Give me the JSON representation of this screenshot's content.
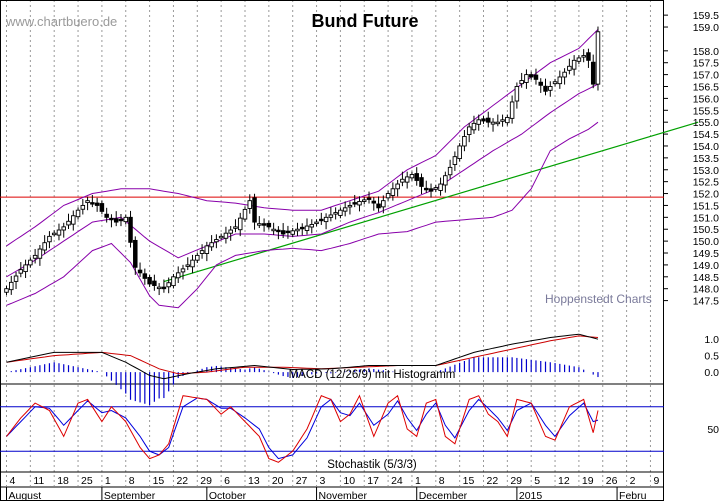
{
  "chart_data": {
    "type": "candlestick",
    "title": "Bund Future",
    "watermark": "www.chartbuero.de",
    "source_note": "Hoppenstedt Charts",
    "colors": {
      "candle": "#000000",
      "bollinger": "#8800aa",
      "support_line": "#00a000",
      "resistance_line": "#dd0000",
      "macd_line": "#000000",
      "macd_signal": "#cc0000",
      "macd_histogram": "#0000cc",
      "stoch_k": "#dd0000",
      "stoch_d": "#0000dd",
      "grid": "#999999"
    },
    "price_axis": {
      "ylim": [
        146.6,
        159.8
      ],
      "ticks": [
        "159.5",
        "159.0",
        "158.0",
        "157.5",
        "157.0",
        "156.5",
        "156.0",
        "155.5",
        "155.0",
        "154.5",
        "154.0",
        "153.5",
        "153.0",
        "152.5",
        "152.0",
        "151.5",
        "151.0",
        "150.5",
        "150.0",
        "149.5",
        "149.0",
        "148.5",
        "148.0",
        "147.5"
      ]
    },
    "resistance_level": 151.85,
    "support_trendline": {
      "from_index": 33,
      "from_value": 148.3,
      "to_index": 145,
      "to_value": 155.0
    },
    "x_axis": {
      "day_ticks": [
        {
          "label": "4",
          "i": 0
        },
        {
          "label": "11",
          "i": 5
        },
        {
          "label": "18",
          "i": 10
        },
        {
          "label": "25",
          "i": 15
        },
        {
          "label": "1",
          "i": 20
        },
        {
          "label": "8",
          "i": 25
        },
        {
          "label": "15",
          "i": 30
        },
        {
          "label": "22",
          "i": 35
        },
        {
          "label": "29",
          "i": 40
        },
        {
          "label": "6",
          "i": 45
        },
        {
          "label": "13",
          "i": 50
        },
        {
          "label": "20",
          "i": 55
        },
        {
          "label": "27",
          "i": 60
        },
        {
          "label": "3",
          "i": 65
        },
        {
          "label": "10",
          "i": 70
        },
        {
          "label": "17",
          "i": 75
        },
        {
          "label": "24",
          "i": 80
        },
        {
          "label": "1",
          "i": 85
        },
        {
          "label": "8",
          "i": 90
        },
        {
          "label": "15",
          "i": 95
        },
        {
          "label": "22",
          "i": 100
        },
        {
          "label": "29",
          "i": 105
        },
        {
          "label": "5",
          "i": 110
        },
        {
          "label": "12",
          "i": 115
        },
        {
          "label": "19",
          "i": 120
        },
        {
          "label": "26",
          "i": 125
        },
        {
          "label": "2",
          "i": 130
        },
        {
          "label": "9",
          "i": 135
        }
      ],
      "month_labels": [
        {
          "label": "August",
          "i": 0
        },
        {
          "label": "September",
          "i": 20
        },
        {
          "label": "October",
          "i": 42
        },
        {
          "label": "November",
          "i": 65
        },
        {
          "label": "December",
          "i": 86
        },
        {
          "label": "2015",
          "i": 107
        },
        {
          "label": "Febru",
          "i": 128
        }
      ]
    },
    "close_anchors": [
      [
        0,
        148.0
      ],
      [
        3,
        148.8
      ],
      [
        6,
        149.4
      ],
      [
        9,
        150.2
      ],
      [
        12,
        150.6
      ],
      [
        15,
        151.3
      ],
      [
        17,
        151.7
      ],
      [
        19,
        151.5
      ],
      [
        21,
        151.0
      ],
      [
        23,
        150.8
      ],
      [
        25,
        151.0
      ],
      [
        27,
        148.9
      ],
      [
        30,
        148.2
      ],
      [
        33,
        148.0
      ],
      [
        35,
        148.5
      ],
      [
        38,
        149.0
      ],
      [
        40,
        149.4
      ],
      [
        42,
        149.8
      ],
      [
        45,
        150.2
      ],
      [
        48,
        150.6
      ],
      [
        51,
        151.7
      ],
      [
        52,
        150.8
      ],
      [
        55,
        150.6
      ],
      [
        58,
        150.3
      ],
      [
        61,
        150.5
      ],
      [
        64,
        150.7
      ],
      [
        67,
        151.0
      ],
      [
        70,
        151.3
      ],
      [
        73,
        151.6
      ],
      [
        76,
        151.8
      ],
      [
        78,
        151.4
      ],
      [
        80,
        152.0
      ],
      [
        83,
        152.6
      ],
      [
        85,
        152.8
      ],
      [
        87,
        152.3
      ],
      [
        89,
        152.1
      ],
      [
        91,
        152.4
      ],
      [
        93,
        153.1
      ],
      [
        95,
        154.0
      ],
      [
        97,
        154.8
      ],
      [
        99,
        155.1
      ],
      [
        101,
        155.0
      ],
      [
        103,
        155.0
      ],
      [
        105,
        155.2
      ],
      [
        107,
        156.5
      ],
      [
        109,
        157.0
      ],
      [
        111,
        156.8
      ],
      [
        113,
        156.3
      ],
      [
        115,
        156.7
      ],
      [
        117,
        157.1
      ],
      [
        119,
        157.6
      ],
      [
        121,
        157.8
      ],
      [
        122,
        157.6
      ],
      [
        123,
        156.6
      ],
      [
        124,
        158.8
      ]
    ],
    "bollinger_upper_anchors": [
      [
        0,
        149.8
      ],
      [
        6,
        150.6
      ],
      [
        12,
        151.5
      ],
      [
        18,
        152.0
      ],
      [
        24,
        152.2
      ],
      [
        30,
        152.2
      ],
      [
        36,
        152.0
      ],
      [
        42,
        151.7
      ],
      [
        48,
        151.6
      ],
      [
        54,
        151.4
      ],
      [
        60,
        151.3
      ],
      [
        66,
        151.3
      ],
      [
        72,
        151.7
      ],
      [
        78,
        152.1
      ],
      [
        84,
        153.0
      ],
      [
        90,
        153.6
      ],
      [
        96,
        154.8
      ],
      [
        102,
        155.7
      ],
      [
        108,
        156.6
      ],
      [
        114,
        157.5
      ],
      [
        120,
        158.1
      ],
      [
        124,
        158.9
      ]
    ],
    "bollinger_middle_anchors": [
      [
        0,
        148.5
      ],
      [
        6,
        149.2
      ],
      [
        12,
        150.0
      ],
      [
        18,
        150.8
      ],
      [
        24,
        151.0
      ],
      [
        30,
        150.0
      ],
      [
        36,
        149.3
      ],
      [
        42,
        149.8
      ],
      [
        48,
        150.3
      ],
      [
        54,
        150.3
      ],
      [
        60,
        150.2
      ],
      [
        66,
        150.3
      ],
      [
        72,
        150.8
      ],
      [
        78,
        151.2
      ],
      [
        84,
        151.7
      ],
      [
        90,
        152.2
      ],
      [
        96,
        153.0
      ],
      [
        102,
        153.8
      ],
      [
        108,
        154.5
      ],
      [
        114,
        155.4
      ],
      [
        120,
        156.2
      ],
      [
        124,
        156.6
      ]
    ],
    "bollinger_lower_anchors": [
      [
        0,
        147.3
      ],
      [
        6,
        147.8
      ],
      [
        12,
        148.5
      ],
      [
        18,
        149.6
      ],
      [
        22,
        149.9
      ],
      [
        26,
        149.1
      ],
      [
        30,
        147.7
      ],
      [
        32,
        147.3
      ],
      [
        36,
        147.2
      ],
      [
        40,
        148.0
      ],
      [
        44,
        149.0
      ],
      [
        48,
        149.4
      ],
      [
        54,
        149.6
      ],
      [
        60,
        149.7
      ],
      [
        66,
        149.6
      ],
      [
        72,
        149.9
      ],
      [
        78,
        150.3
      ],
      [
        84,
        150.4
      ],
      [
        90,
        150.8
      ],
      [
        96,
        150.9
      ],
      [
        102,
        151.0
      ],
      [
        106,
        151.3
      ],
      [
        110,
        152.2
      ],
      [
        114,
        153.8
      ],
      [
        118,
        154.3
      ],
      [
        122,
        154.7
      ],
      [
        124,
        155.0
      ]
    ],
    "macd_panel": {
      "label": "MACD (12/26/9) mit Histogramm",
      "ticks": [
        "1.0",
        "0.5",
        "0.0"
      ],
      "ylim": [
        -0.3,
        1.4
      ],
      "macd_anchors": [
        [
          0,
          0.3
        ],
        [
          10,
          0.6
        ],
        [
          20,
          0.6
        ],
        [
          25,
          0.3
        ],
        [
          30,
          -0.1
        ],
        [
          33,
          -0.2
        ],
        [
          38,
          -0.05
        ],
        [
          44,
          0.1
        ],
        [
          52,
          0.2
        ],
        [
          60,
          0.08
        ],
        [
          68,
          0.1
        ],
        [
          76,
          0.2
        ],
        [
          84,
          0.2
        ],
        [
          90,
          0.2
        ],
        [
          98,
          0.6
        ],
        [
          106,
          0.85
        ],
        [
          114,
          1.05
        ],
        [
          120,
          1.15
        ],
        [
          124,
          1.0
        ]
      ],
      "signal_anchors": [
        [
          0,
          0.3
        ],
        [
          10,
          0.5
        ],
        [
          20,
          0.6
        ],
        [
          26,
          0.5
        ],
        [
          32,
          0.1
        ],
        [
          36,
          -0.05
        ],
        [
          42,
          0.0
        ],
        [
          50,
          0.15
        ],
        [
          58,
          0.15
        ],
        [
          66,
          0.1
        ],
        [
          74,
          0.15
        ],
        [
          82,
          0.2
        ],
        [
          90,
          0.2
        ],
        [
          98,
          0.45
        ],
        [
          106,
          0.7
        ],
        [
          114,
          0.95
        ],
        [
          120,
          1.1
        ],
        [
          124,
          1.05
        ]
      ]
    },
    "stoch_panel": {
      "label": "Stochastik (5/3/3)",
      "ticks": [
        "50"
      ],
      "ylim": [
        0,
        100
      ],
      "reference_lines": [
        80,
        20
      ],
      "k_anchors": [
        [
          0,
          40
        ],
        [
          3,
          65
        ],
        [
          6,
          85
        ],
        [
          9,
          75
        ],
        [
          12,
          40
        ],
        [
          15,
          85
        ],
        [
          17,
          90
        ],
        [
          20,
          60
        ],
        [
          22,
          80
        ],
        [
          25,
          60
        ],
        [
          28,
          25
        ],
        [
          30,
          10
        ],
        [
          32,
          15
        ],
        [
          34,
          30
        ],
        [
          37,
          95
        ],
        [
          40,
          92
        ],
        [
          42,
          90
        ],
        [
          45,
          70
        ],
        [
          47,
          80
        ],
        [
          50,
          60
        ],
        [
          53,
          40
        ],
        [
          55,
          10
        ],
        [
          57,
          5
        ],
        [
          60,
          20
        ],
        [
          63,
          50
        ],
        [
          66,
          95
        ],
        [
          68,
          90
        ],
        [
          70,
          60
        ],
        [
          72,
          70
        ],
        [
          74,
          95
        ],
        [
          77,
          40
        ],
        [
          80,
          85
        ],
        [
          82,
          95
        ],
        [
          84,
          50
        ],
        [
          86,
          40
        ],
        [
          88,
          85
        ],
        [
          90,
          90
        ],
        [
          92,
          40
        ],
        [
          94,
          30
        ],
        [
          97,
          90
        ],
        [
          99,
          95
        ],
        [
          101,
          70
        ],
        [
          103,
          60
        ],
        [
          105,
          40
        ],
        [
          107,
          90
        ],
        [
          110,
          85
        ],
        [
          113,
          40
        ],
        [
          115,
          35
        ],
        [
          118,
          80
        ],
        [
          121,
          90
        ],
        [
          123,
          45
        ],
        [
          124,
          75
        ]
      ],
      "d_anchors": [
        [
          0,
          40
        ],
        [
          3,
          60
        ],
        [
          6,
          80
        ],
        [
          9,
          78
        ],
        [
          12,
          55
        ],
        [
          15,
          75
        ],
        [
          17,
          88
        ],
        [
          20,
          72
        ],
        [
          22,
          75
        ],
        [
          25,
          65
        ],
        [
          28,
          40
        ],
        [
          30,
          20
        ],
        [
          32,
          15
        ],
        [
          34,
          25
        ],
        [
          37,
          80
        ],
        [
          40,
          92
        ],
        [
          42,
          90
        ],
        [
          45,
          78
        ],
        [
          47,
          78
        ],
        [
          50,
          65
        ],
        [
          53,
          50
        ],
        [
          55,
          25
        ],
        [
          57,
          10
        ],
        [
          60,
          15
        ],
        [
          63,
          38
        ],
        [
          66,
          80
        ],
        [
          68,
          90
        ],
        [
          70,
          72
        ],
        [
          72,
          68
        ],
        [
          74,
          85
        ],
        [
          77,
          55
        ],
        [
          80,
          70
        ],
        [
          82,
          88
        ],
        [
          84,
          65
        ],
        [
          86,
          48
        ],
        [
          88,
          70
        ],
        [
          90,
          85
        ],
        [
          92,
          55
        ],
        [
          94,
          38
        ],
        [
          97,
          75
        ],
        [
          99,
          90
        ],
        [
          101,
          78
        ],
        [
          103,
          65
        ],
        [
          105,
          48
        ],
        [
          107,
          75
        ],
        [
          110,
          85
        ],
        [
          113,
          55
        ],
        [
          115,
          40
        ],
        [
          118,
          68
        ],
        [
          121,
          85
        ],
        [
          123,
          60
        ],
        [
          124,
          62
        ]
      ]
    }
  }
}
